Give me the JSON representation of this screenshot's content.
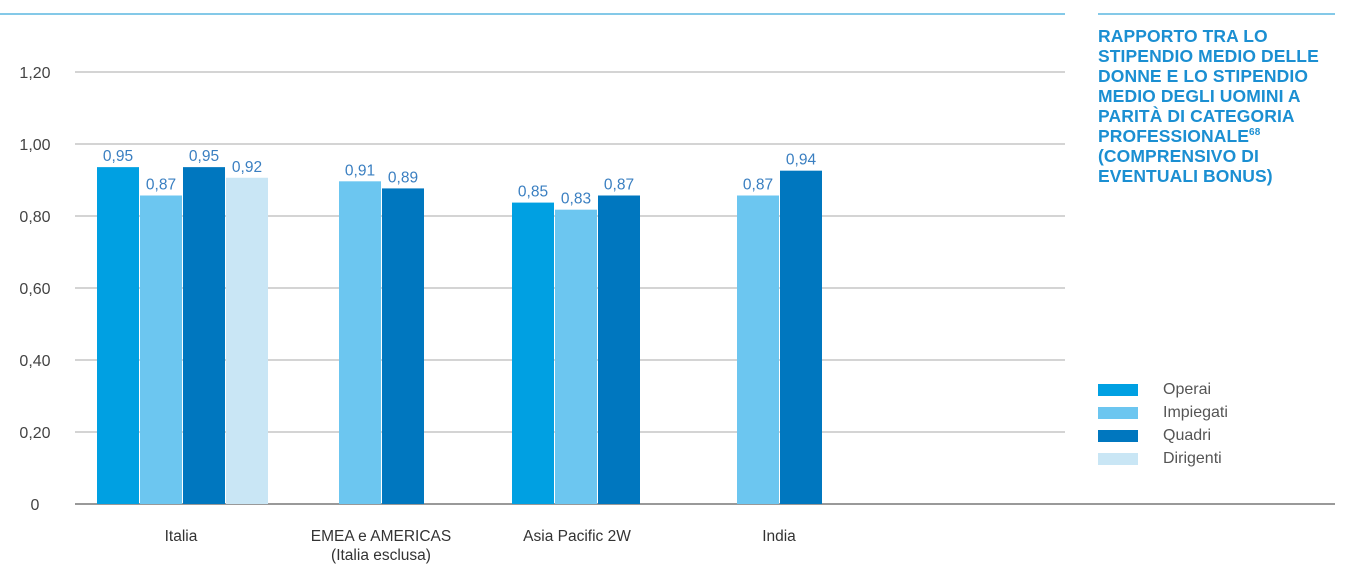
{
  "title": {
    "text": "RAPPORTO TRA LO STIPENDIO MEDIO DELLE DONNE E LO STIPENDIO MEDIO DEGLI UOMINI A PARITÀ DI CATEGORIA PROFESSIONALE",
    "footnote": "68",
    "suffix": "(COMPRENSIVO DI EVENTUALI BONUS)"
  },
  "colors": {
    "title": "#1b8fd2",
    "rule": "#3aa9da",
    "grid": "#8c8c8c",
    "axis": "#333333",
    "label": "#3a7fc1"
  },
  "chart_data": {
    "type": "bar",
    "categories": [
      "Italia",
      "EMEA e AMERICAS\n(Italia esclusa)",
      "Asia Pacific 2W",
      "India"
    ],
    "series": [
      {
        "name": "Operai",
        "color": "#00a0e2",
        "values": [
          0.95,
          null,
          0.85,
          null
        ]
      },
      {
        "name": "Impiegati",
        "color": "#6cc6f0",
        "values": [
          0.87,
          0.91,
          0.83,
          0.87
        ]
      },
      {
        "name": "Quadri",
        "color": "#0077bf",
        "values": [
          0.95,
          0.89,
          0.87,
          0.94
        ]
      },
      {
        "name": "Dirigenti",
        "color": "#c9e6f5",
        "values": [
          0.92,
          null,
          null,
          null
        ]
      }
    ],
    "data_labels": [
      [
        "0,95",
        null,
        "0,85",
        null
      ],
      [
        "0,87",
        "0,91",
        "0,83",
        "0,87"
      ],
      [
        "0,95",
        "0,89",
        "0,87",
        "0,94"
      ],
      [
        "0,92",
        null,
        null,
        null
      ]
    ],
    "yticks": [
      0,
      0.2,
      0.4,
      0.6,
      0.8,
      1.0,
      1.2
    ],
    "ytick_labels": [
      "0",
      "0,20",
      "0,40",
      "0,60",
      "0,80",
      "1,00",
      "1,20"
    ],
    "ylim": [
      0,
      1.2
    ],
    "grid": true,
    "legend_position": "right"
  }
}
